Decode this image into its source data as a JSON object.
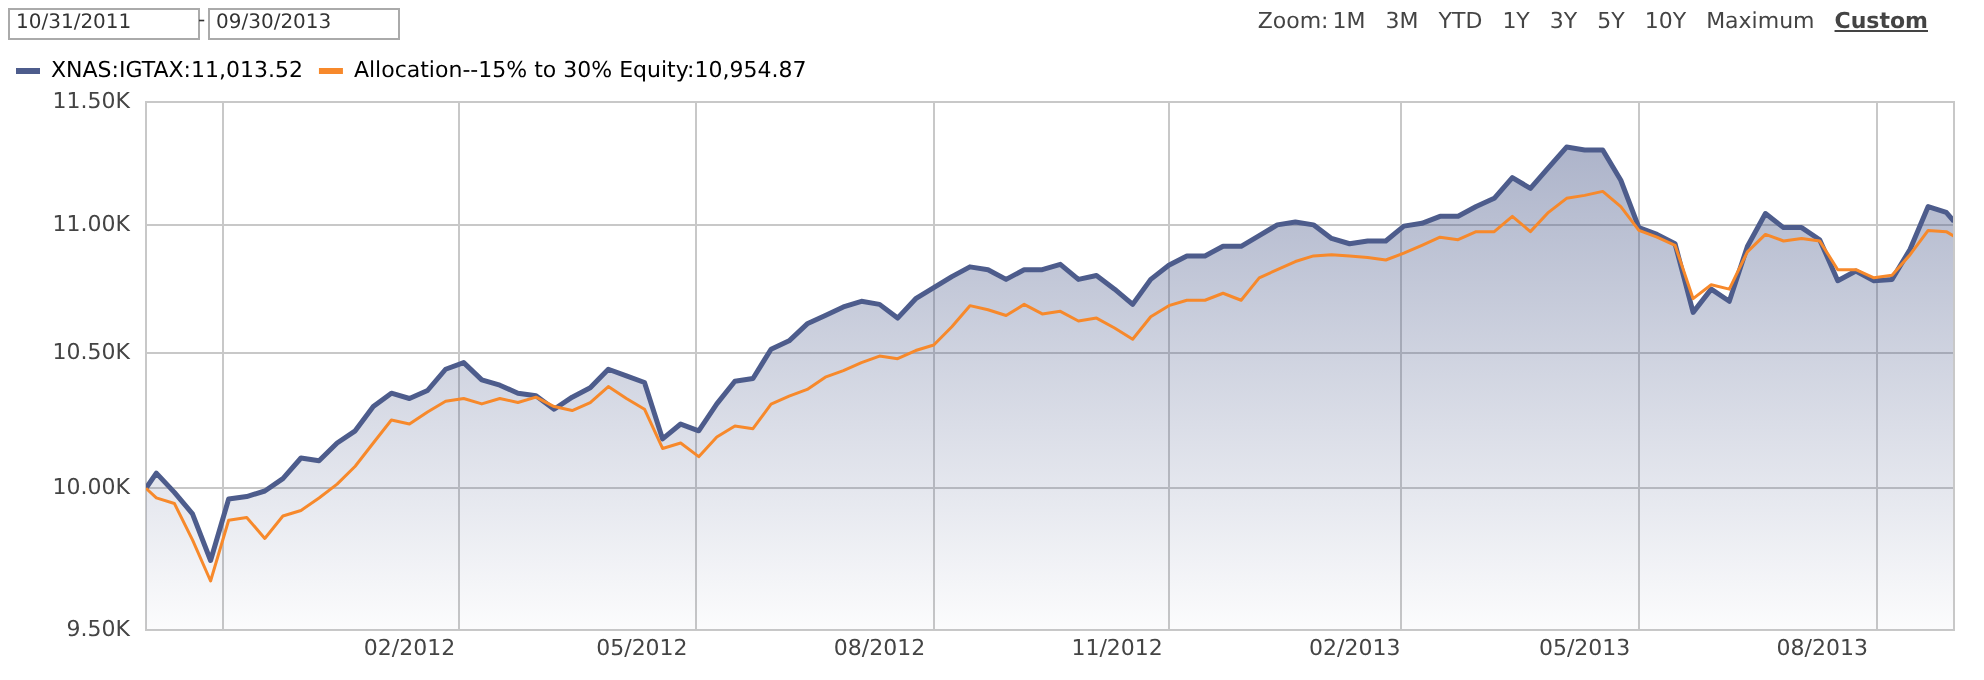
{
  "chart_data": {
    "type": "line",
    "log": true,
    "grid": true,
    "legend": "top left",
    "marker": "none",
    "line_style": "solid",
    "annotations": [
      "10/31/2011",
      "-",
      "09/30/2013",
      "Zoom:",
      "1M",
      "3M",
      "YTD",
      "1Y",
      "3Y",
      "5Y",
      "10Y",
      "Maximum",
      "Custom"
    ],
    "x": [
      "2011-10-31",
      "2011-11-04",
      "2011-11-11",
      "2011-11-18",
      "2011-11-25",
      "2011-12-02",
      "2011-12-09",
      "2011-12-16",
      "2011-12-23",
      "2011-12-30",
      "2012-01-06",
      "2012-01-13",
      "2012-01-20",
      "2012-01-27",
      "2012-02-03",
      "2012-02-10",
      "2012-02-17",
      "2012-02-24",
      "2012-03-02",
      "2012-03-09",
      "2012-03-16",
      "2012-03-23",
      "2012-03-30",
      "2012-04-06",
      "2012-04-13",
      "2012-04-20",
      "2012-04-27",
      "2012-05-04",
      "2012-05-11",
      "2012-05-18",
      "2012-05-25",
      "2012-06-01",
      "2012-06-08",
      "2012-06-15",
      "2012-06-22",
      "2012-06-29",
      "2012-07-06",
      "2012-07-13",
      "2012-07-20",
      "2012-07-27",
      "2012-08-03",
      "2012-08-10",
      "2012-08-17",
      "2012-08-24",
      "2012-08-31",
      "2012-09-07",
      "2012-09-14",
      "2012-09-21",
      "2012-09-28",
      "2012-10-05",
      "2012-10-12",
      "2012-10-19",
      "2012-10-26",
      "2012-11-02",
      "2012-11-09",
      "2012-11-16",
      "2012-11-23",
      "2012-11-30",
      "2012-12-07",
      "2012-12-14",
      "2012-12-21",
      "2012-12-28",
      "2013-01-04",
      "2013-01-11",
      "2013-01-18",
      "2013-01-25",
      "2013-02-01",
      "2013-02-08",
      "2013-02-15",
      "2013-02-22",
      "2013-03-01",
      "2013-03-08",
      "2013-03-15",
      "2013-03-22",
      "2013-03-29",
      "2013-04-05",
      "2013-04-12",
      "2013-04-19",
      "2013-04-26",
      "2013-05-03",
      "2013-05-10",
      "2013-05-17",
      "2013-05-24",
      "2013-05-31",
      "2013-06-07",
      "2013-06-14",
      "2013-06-21",
      "2013-06-28",
      "2013-07-05",
      "2013-07-12",
      "2013-07-19",
      "2013-07-26",
      "2013-08-02",
      "2013-08-09",
      "2013-08-16",
      "2013-08-23",
      "2013-08-30",
      "2013-09-06",
      "2013-09-13",
      "2013-09-20",
      "2013-09-27",
      "2013-09-30"
    ],
    "xlim": [
      "2011-10-31",
      "2013-09-30"
    ],
    "xticks": [
      {
        "value": "2011-11-30",
        "label": null
      },
      {
        "value": "2012-02-10",
        "label": "02/2012"
      },
      {
        "value": "2012-02-29",
        "label": null
      },
      {
        "value": "2012-05-10",
        "label": "05/2012"
      },
      {
        "value": "2012-05-31",
        "label": null
      },
      {
        "value": "2012-08-10",
        "label": "08/2012"
      },
      {
        "value": "2012-08-31",
        "label": null
      },
      {
        "value": "2012-11-10",
        "label": "11/2012"
      },
      {
        "value": "2012-11-30",
        "label": null
      },
      {
        "value": "2013-02-10",
        "label": "02/2013"
      },
      {
        "value": "2013-02-28",
        "label": null
      },
      {
        "value": "2013-05-10",
        "label": "05/2013"
      },
      {
        "value": "2013-05-31",
        "label": null
      },
      {
        "value": "2013-08-10",
        "label": "08/2013"
      },
      {
        "value": "2013-08-31",
        "label": null
      }
    ],
    "ylim": [
      9500,
      11500
    ],
    "yticks": [
      {
        "value": 9500,
        "label": "9.50K"
      },
      {
        "value": 10000,
        "label": "10.00K"
      },
      {
        "value": 10500,
        "label": "10.50K"
      },
      {
        "value": 11000,
        "label": "11.00K"
      },
      {
        "value": 11500,
        "label": "11.50K"
      }
    ],
    "series": [
      {
        "name": "XNAS:IGTAX:11,013.52",
        "type": "area",
        "color": "#4d5c8c",
        "values": [
          10000,
          10055,
          9985,
          9908,
          9742,
          9961,
          9970,
          9990,
          10035,
          10110,
          10100,
          10165,
          10210,
          10300,
          10350,
          10330,
          10360,
          10440,
          10465,
          10400,
          10380,
          10350,
          10340,
          10290,
          10335,
          10370,
          10440,
          10415,
          10390,
          10180,
          10235,
          10210,
          10310,
          10395,
          10405,
          10516,
          10548,
          10613,
          10645,
          10678,
          10700,
          10688,
          10635,
          10710,
          10753,
          10796,
          10834,
          10823,
          10785,
          10823,
          10823,
          10844,
          10785,
          10800,
          10747,
          10688,
          10785,
          10840,
          10877,
          10877,
          10915,
          10915,
          10957,
          11000,
          11011,
          11000,
          10946,
          10925,
          10936,
          10936,
          10995,
          11006,
          11034,
          11034,
          11073,
          11106,
          11190,
          11146,
          11230,
          11314,
          11302,
          11302,
          11179,
          10989,
          10962,
          10925,
          10657,
          10747,
          10700,
          10914,
          11045,
          10989,
          10989,
          10941,
          10780,
          10818,
          10780,
          10785,
          10903,
          11073,
          11050,
          11013.52
        ]
      },
      {
        "name": "Allocation--15% to 30% Equity:10,954.87",
        "type": "line",
        "color": "#f7892b",
        "values": [
          10000,
          9965,
          9945,
          9815,
          9670,
          9885,
          9895,
          9820,
          9900,
          9920,
          9965,
          10015,
          10080,
          10165,
          10250,
          10235,
          10280,
          10320,
          10330,
          10310,
          10330,
          10315,
          10335,
          10300,
          10285,
          10315,
          10375,
          10330,
          10290,
          10145,
          10165,
          10115,
          10187,
          10228,
          10218,
          10309,
          10339,
          10364,
          10410,
          10435,
          10465,
          10490,
          10480,
          10511,
          10532,
          10602,
          10683,
          10667,
          10645,
          10688,
          10651,
          10661,
          10624,
          10635,
          10597,
          10554,
          10640,
          10683,
          10704,
          10704,
          10731,
          10704,
          10791,
          10823,
          10855,
          10877,
          10882,
          10877,
          10871,
          10861,
          10888,
          10919,
          10951,
          10941,
          10973,
          10973,
          11034,
          10973,
          11050,
          11106,
          11118,
          11134,
          11073,
          10978,
          10951,
          10919,
          10710,
          10764,
          10747,
          10893,
          10962,
          10936,
          10946,
          10936,
          10823,
          10823,
          10791,
          10801,
          10882,
          10978,
          10973,
          10954.87
        ]
      }
    ]
  }
}
